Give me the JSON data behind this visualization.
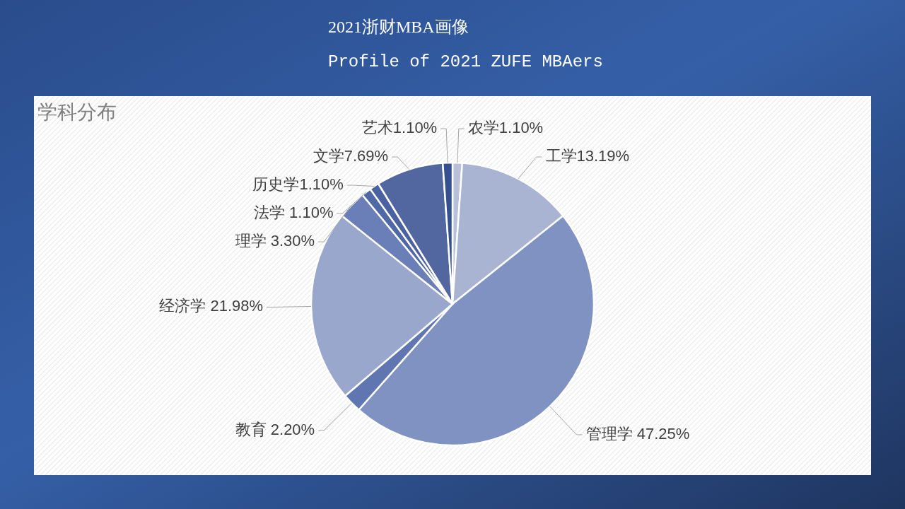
{
  "chart_data": {
    "type": "pie",
    "title": "学科分布",
    "annotations": [
      "2021浙财MBA画像",
      "Profile of 2021 ZUFE MBAers"
    ],
    "categories": [
      "农学",
      "工学",
      "管理学",
      "教育",
      "经济学",
      "理学",
      "法学",
      "历史学",
      "文学",
      "艺术"
    ],
    "values": [
      1.1,
      13.19,
      47.25,
      2.2,
      21.98,
      3.3,
      1.1,
      1.1,
      7.69,
      1.1
    ],
    "value_labels": [
      "1.10%",
      "13.19%",
      " 47.25%",
      " 2.20%",
      " 21.98%",
      " 3.30%",
      " 1.10%",
      "1.10%",
      "7.69%",
      "1.10%"
    ],
    "colors": [
      "#b8c0da",
      "#a9b3d2",
      "#7f92c2",
      "#5f76b0",
      "#99a7cc",
      "#6a7fb7",
      "#4f68a6",
      "#4a62a0",
      "#52679f",
      "#34508f"
    ]
  }
}
